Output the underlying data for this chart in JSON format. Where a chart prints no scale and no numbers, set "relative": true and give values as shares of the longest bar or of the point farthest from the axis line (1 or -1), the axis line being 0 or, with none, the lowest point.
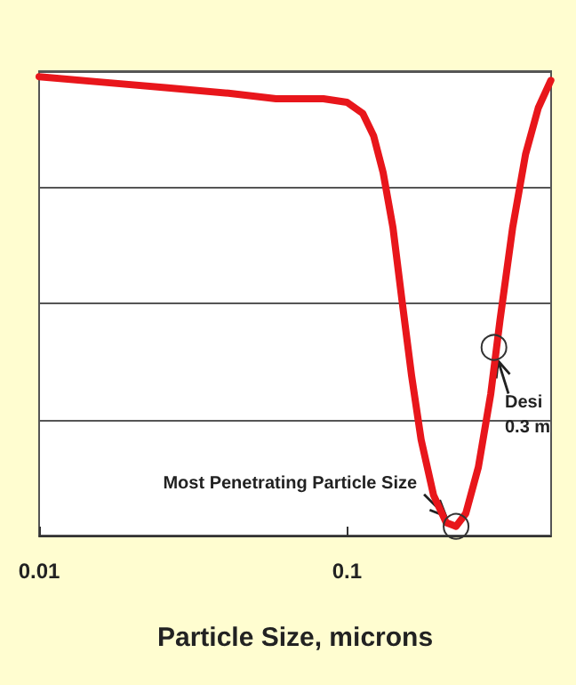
{
  "chart_data": {
    "type": "line",
    "xlabel": "Particle Size, microns",
    "relative": true,
    "log": "x",
    "grid": "y",
    "color": "#e8161b",
    "marker": "none",
    "line_style": "solid",
    "xlim": [
      0.01,
      0.46
    ],
    "xticks": [
      0.01,
      0.1
    ],
    "x": [
      0.01,
      0.016,
      0.0257,
      0.0412,
      0.0588,
      0.0838,
      0.1,
      0.1125,
      0.122,
      0.131,
      0.141,
      0.151,
      0.162,
      0.174,
      0.191,
      0.21,
      0.226,
      0.243,
      0.267,
      0.293,
      0.314,
      0.345,
      0.38,
      0.418,
      0.459
    ],
    "values": [
      1,
      0.988,
      0.976,
      0.964,
      0.952,
      0.952,
      0.944,
      0.92,
      0.871,
      0.791,
      0.671,
      0.51,
      0.349,
      0.209,
      0.088,
      0.028,
      0.02,
      0.048,
      0.149,
      0.309,
      0.47,
      0.671,
      0.831,
      0.932,
      0.992
    ],
    "annotations": [
      {
        "text": "Most Penetrating Particle Size",
        "x": 0.226,
        "y": 0.02
      },
      {
        "text": "Desi\n0.3 m",
        "x": 0.3,
        "y": 0.41
      }
    ]
  }
}
